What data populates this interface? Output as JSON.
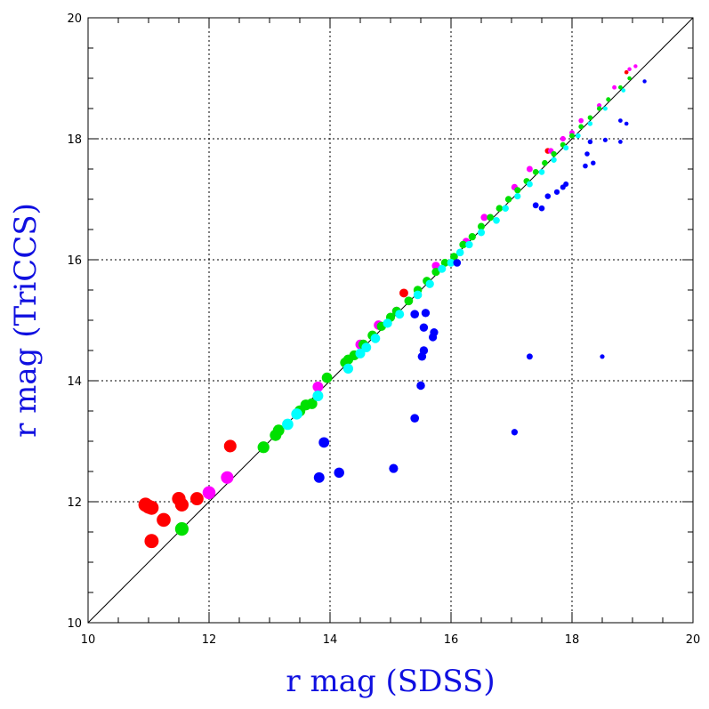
{
  "chart_data": {
    "type": "scatter",
    "title": "",
    "xlabel": "r mag (SDSS)",
    "ylabel": "r mag (TriCCS)",
    "xlim": [
      10,
      20
    ],
    "ylim": [
      10,
      20
    ],
    "xticks": [
      10,
      12,
      14,
      16,
      18,
      20
    ],
    "yticks": [
      10,
      12,
      14,
      16,
      18,
      20
    ],
    "grid": true,
    "grid_style": "dotted",
    "reference_line": {
      "type": "identity",
      "from": [
        10,
        10
      ],
      "to": [
        20,
        20
      ]
    },
    "colors": {
      "axis_title": "#1010e0",
      "red": "#ff0000",
      "magenta": "#ff00ff",
      "green": "#00e000",
      "cyan": "#00ffff",
      "blue": "#0000ff"
    },
    "series": [
      {
        "color_key": "red",
        "points": [
          [
            10.95,
            11.95
          ],
          [
            11.0,
            11.92
          ],
          [
            11.05,
            11.9
          ],
          [
            11.05,
            11.35
          ],
          [
            11.25,
            11.7
          ],
          [
            11.5,
            12.05
          ],
          [
            11.55,
            11.95
          ],
          [
            11.8,
            12.05
          ],
          [
            12.35,
            12.92
          ],
          [
            15.22,
            15.45
          ],
          [
            17.6,
            17.8
          ],
          [
            18.9,
            19.1
          ]
        ]
      },
      {
        "color_key": "magenta",
        "points": [
          [
            12.0,
            12.15
          ],
          [
            12.3,
            12.4
          ],
          [
            13.8,
            13.9
          ],
          [
            14.5,
            14.6
          ],
          [
            14.8,
            14.92
          ],
          [
            15.1,
            15.15
          ],
          [
            15.75,
            15.9
          ],
          [
            16.25,
            16.3
          ],
          [
            16.55,
            16.7
          ],
          [
            17.05,
            17.2
          ],
          [
            17.3,
            17.5
          ],
          [
            17.65,
            17.8
          ],
          [
            17.85,
            18.0
          ],
          [
            18.0,
            18.1
          ],
          [
            18.15,
            18.3
          ],
          [
            18.45,
            18.55
          ],
          [
            18.7,
            18.85
          ],
          [
            18.95,
            19.15
          ],
          [
            19.05,
            19.2
          ]
        ]
      },
      {
        "color_key": "green",
        "points": [
          [
            11.55,
            11.55
          ],
          [
            12.9,
            12.9
          ],
          [
            13.1,
            13.1
          ],
          [
            13.15,
            13.18
          ],
          [
            13.5,
            13.5
          ],
          [
            13.6,
            13.6
          ],
          [
            13.7,
            13.62
          ],
          [
            13.95,
            14.05
          ],
          [
            14.25,
            14.3
          ],
          [
            14.3,
            14.35
          ],
          [
            14.4,
            14.42
          ],
          [
            14.55,
            14.6
          ],
          [
            14.7,
            14.75
          ],
          [
            14.85,
            14.9
          ],
          [
            15.0,
            15.05
          ],
          [
            15.1,
            15.15
          ],
          [
            15.3,
            15.32
          ],
          [
            15.45,
            15.5
          ],
          [
            15.6,
            15.65
          ],
          [
            15.75,
            15.8
          ],
          [
            15.9,
            15.95
          ],
          [
            16.05,
            16.05
          ],
          [
            16.2,
            16.25
          ],
          [
            16.35,
            16.38
          ],
          [
            16.5,
            16.55
          ],
          [
            16.65,
            16.7
          ],
          [
            16.8,
            16.85
          ],
          [
            16.95,
            17.0
          ],
          [
            17.1,
            17.15
          ],
          [
            17.25,
            17.3
          ],
          [
            17.4,
            17.45
          ],
          [
            17.55,
            17.6
          ],
          [
            17.7,
            17.75
          ],
          [
            17.85,
            17.9
          ],
          [
            18.0,
            18.05
          ],
          [
            18.15,
            18.2
          ],
          [
            18.3,
            18.35
          ],
          [
            18.45,
            18.5
          ],
          [
            18.6,
            18.65
          ],
          [
            18.8,
            18.85
          ],
          [
            18.95,
            19.0
          ]
        ]
      },
      {
        "color_key": "cyan",
        "points": [
          [
            13.3,
            13.28
          ],
          [
            13.45,
            13.45
          ],
          [
            13.8,
            13.75
          ],
          [
            14.3,
            14.2
          ],
          [
            14.5,
            14.45
          ],
          [
            14.6,
            14.55
          ],
          [
            14.75,
            14.7
          ],
          [
            14.95,
            14.95
          ],
          [
            15.15,
            15.1
          ],
          [
            15.45,
            15.42
          ],
          [
            15.65,
            15.6
          ],
          [
            15.85,
            15.85
          ],
          [
            16.0,
            15.95
          ],
          [
            16.15,
            16.12
          ],
          [
            16.3,
            16.25
          ],
          [
            16.5,
            16.45
          ],
          [
            16.75,
            16.65
          ],
          [
            16.9,
            16.85
          ],
          [
            17.1,
            17.05
          ],
          [
            17.3,
            17.25
          ],
          [
            17.5,
            17.45
          ],
          [
            17.7,
            17.65
          ],
          [
            17.9,
            17.85
          ],
          [
            18.1,
            18.05
          ],
          [
            18.3,
            18.25
          ],
          [
            18.55,
            18.5
          ],
          [
            18.85,
            18.8
          ]
        ]
      },
      {
        "color_key": "blue",
        "points": [
          [
            13.82,
            12.4
          ],
          [
            13.9,
            12.98
          ],
          [
            14.15,
            12.48
          ],
          [
            15.05,
            12.55
          ],
          [
            15.4,
            13.38
          ],
          [
            15.4,
            15.1
          ],
          [
            15.5,
            13.92
          ],
          [
            15.52,
            14.4
          ],
          [
            15.55,
            14.5
          ],
          [
            15.55,
            14.88
          ],
          [
            15.58,
            15.12
          ],
          [
            15.7,
            14.72
          ],
          [
            15.72,
            14.8
          ],
          [
            16.1,
            15.95
          ],
          [
            17.05,
            13.15
          ],
          [
            17.3,
            14.4
          ],
          [
            17.4,
            16.9
          ],
          [
            17.5,
            16.85
          ],
          [
            17.6,
            17.05
          ],
          [
            17.75,
            17.12
          ],
          [
            17.85,
            17.2
          ],
          [
            17.9,
            17.25
          ],
          [
            18.22,
            17.55
          ],
          [
            18.25,
            17.75
          ],
          [
            18.3,
            17.95
          ],
          [
            18.35,
            17.6
          ],
          [
            18.55,
            17.98
          ],
          [
            18.5,
            14.4
          ],
          [
            18.8,
            18.3
          ],
          [
            18.8,
            17.95
          ],
          [
            18.9,
            18.25
          ],
          [
            19.2,
            18.95
          ]
        ]
      }
    ]
  }
}
